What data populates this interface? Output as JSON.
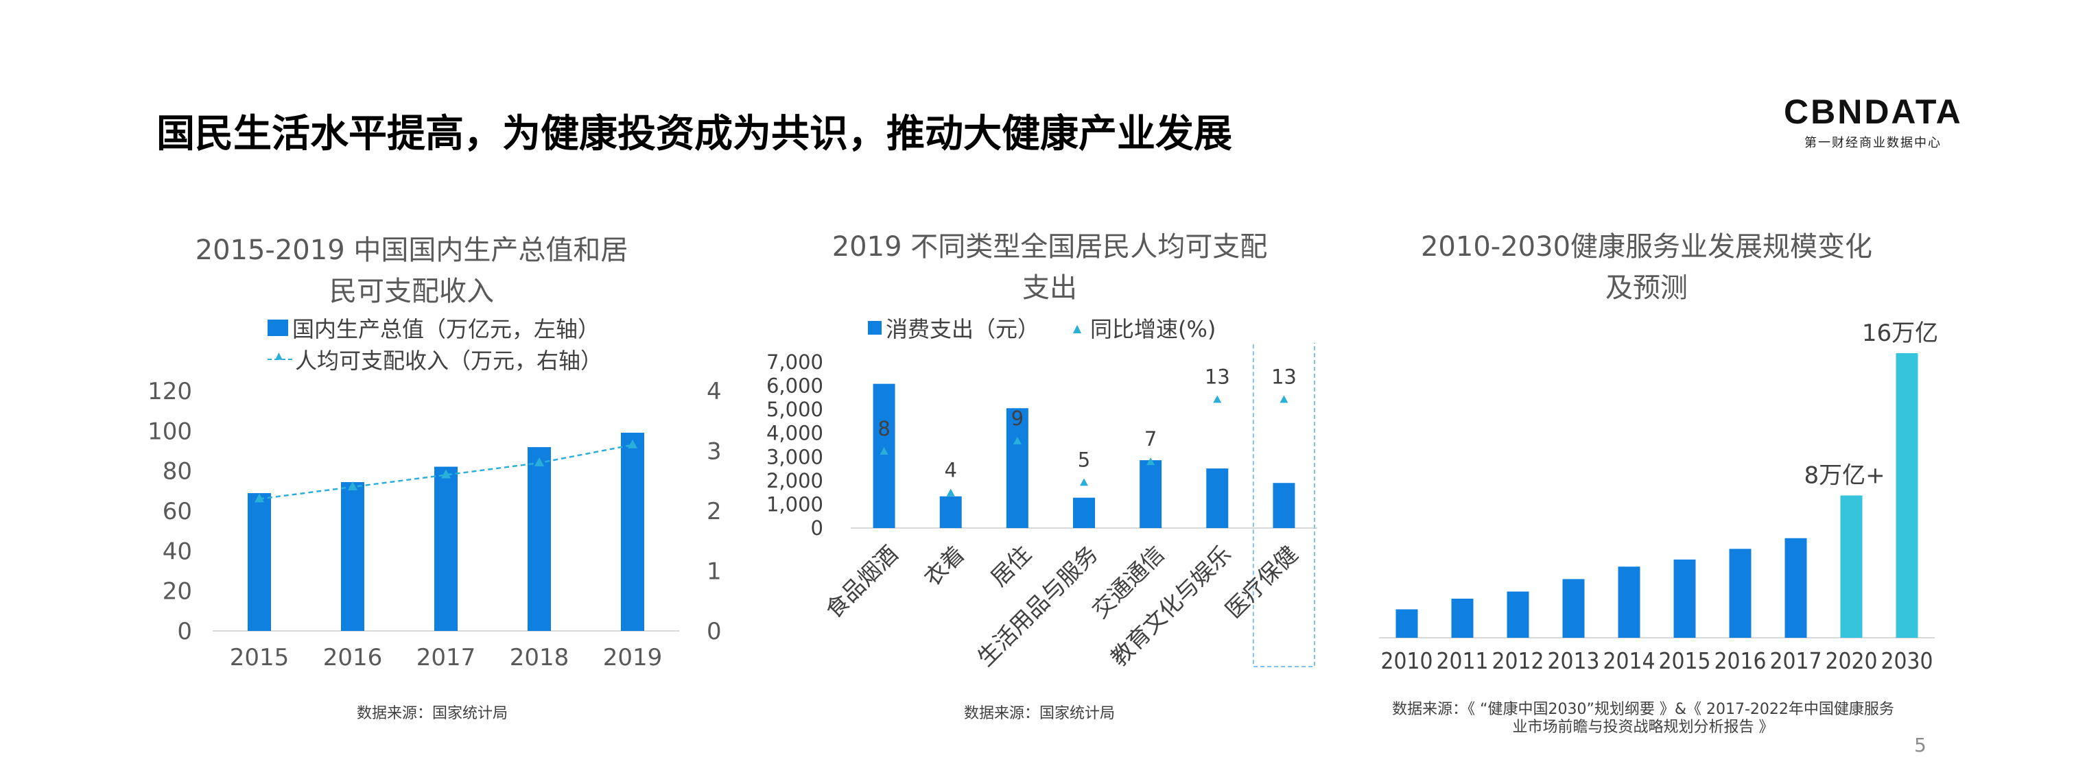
{
  "page": {
    "title": "国民生活水平提高，为健康投资成为共识，推动大健康产业发展",
    "page_number": "5"
  },
  "logo": {
    "main": "CBNDATA",
    "sub": "第一财经商业数据中心"
  },
  "colors": {
    "bar": "#0f80e0",
    "highlight": "#36c3dc",
    "line": "#2ab0d8",
    "axis": "#d9d9d9"
  },
  "charts": {
    "c1": {
      "source": "数据来源：国家统计局"
    },
    "c2": {
      "source": "数据来源：国家统计局"
    },
    "c3": {
      "source_line1": "数据来源：《 “健康中国2030”规划纲要 》&《 2017-2022年中国健康服务",
      "source_line2": "业市场前瞻与投资战略规划分析报告 》"
    }
  },
  "chart_data": [
    {
      "type": "bar",
      "title_lines": [
        "2015-2019 中国国内生产总值和居",
        "民可支配收入"
      ],
      "categories": [
        "2015",
        "2016",
        "2017",
        "2018",
        "2019"
      ],
      "series": [
        {
          "name": "国内生产总值（万亿元，左轴）",
          "type": "bar",
          "axis": "left",
          "values": [
            68.9,
            74.4,
            82.1,
            91.9,
            99.1
          ]
        },
        {
          "name": "人均可支配收入（万元，右轴）",
          "type": "line",
          "axis": "right",
          "values": [
            2.2,
            2.4,
            2.6,
            2.8,
            3.1
          ]
        }
      ],
      "y_left": {
        "ticks": [
          "0",
          "20",
          "40",
          "60",
          "80",
          "100",
          "120"
        ],
        "ylim": [
          0,
          120
        ]
      },
      "y_right": {
        "ticks": [
          "0",
          "1",
          "2",
          "3",
          "4"
        ],
        "ylim": [
          0,
          4
        ]
      },
      "grid": false,
      "legend_position": "top"
    },
    {
      "type": "bar",
      "title_lines": [
        "2019 不同类型全国居民人均可支配",
        "支出"
      ],
      "categories": [
        "食品烟酒",
        "衣着",
        "居住",
        "生活用品与服务",
        "交通通信",
        "教育文化与娱乐",
        "医疗保健"
      ],
      "series": [
        {
          "name": "消费支出（元）",
          "type": "bar",
          "values": [
            6084,
            1338,
            5055,
            1281,
            2862,
            2513,
            1902
          ]
        },
        {
          "name": "同比增速(%)",
          "type": "scatter",
          "values": [
            8,
            4,
            9,
            5,
            7,
            13,
            13
          ],
          "labels": [
            "8",
            "4",
            "9",
            "5",
            "7",
            "13",
            "13"
          ]
        }
      ],
      "y": {
        "ticks": [
          "0",
          "1,000",
          "2,000",
          "3,000",
          "4,000",
          "5,000",
          "6,000",
          "7,000"
        ],
        "ylim": [
          0,
          7000
        ]
      },
      "highlight_category": "医疗保健",
      "grid": false,
      "legend_position": "top"
    },
    {
      "type": "bar",
      "title_lines": [
        "2010-2030健康服务业发展规模变化",
        "及预测"
      ],
      "categories": [
        "2010",
        "2011",
        "2012",
        "2013",
        "2014",
        "2015",
        "2016",
        "2017",
        "2020",
        "2030"
      ],
      "values": [
        1.6,
        2.2,
        2.6,
        3.3,
        4.0,
        4.4,
        5.0,
        5.6,
        8.0,
        16.0
      ],
      "highlighted": [
        false,
        false,
        false,
        false,
        false,
        false,
        false,
        false,
        true,
        true
      ],
      "annotations": [
        {
          "category": "2020",
          "text": "8万亿+"
        },
        {
          "category": "2030",
          "text": "16万亿"
        }
      ],
      "y_axis_visible": false,
      "grid": false
    }
  ]
}
